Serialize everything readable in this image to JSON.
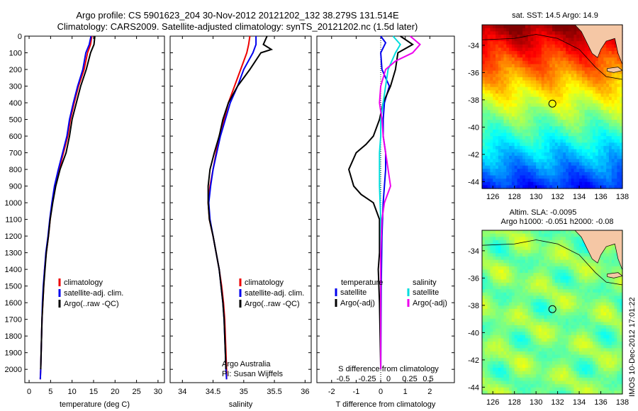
{
  "header": {
    "title_line1": "Argo profile: CS 5901623_204 30-Nov-2012 20121202_132 38.279S 131.514E",
    "title_line2": "Climatology: CARS2009. Satellite-adjusted climatology: synTS_20121202.nc (1.5d later)"
  },
  "stamp": "IMOS 10-Dec-2012 17:01:22",
  "colors": {
    "climatology": "#ee0000",
    "satellite": "#0000ee",
    "argo": "#000000",
    "satellite_salinity": "#00dddd",
    "argo_adj_salinity": "#ee00ee"
  },
  "chart_data": [
    {
      "type": "line",
      "panel": "temperature",
      "xlabel": "temperature (deg C)",
      "xlim": [
        -1,
        31.5
      ],
      "xticks": [
        0,
        5,
        10,
        15,
        20,
        25,
        30
      ],
      "ylim": [
        2080,
        0
      ],
      "yticks": [
        0,
        100,
        200,
        300,
        400,
        500,
        600,
        700,
        800,
        900,
        1000,
        1100,
        1200,
        1300,
        1400,
        1500,
        1600,
        1700,
        1800,
        1900,
        2000
      ],
      "legend": [
        "climatology",
        "satellite-adj. clim.",
        "Argo(..raw -QC)"
      ],
      "series": [
        {
          "name": "climatology",
          "color": "climatology",
          "points": [
            [
              14.6,
              0
            ],
            [
              14.3,
              50
            ],
            [
              13.6,
              100
            ],
            [
              12.8,
              200
            ],
            [
              11.5,
              300
            ],
            [
              10.5,
              400
            ],
            [
              9.6,
              500
            ],
            [
              9.0,
              600
            ],
            [
              8.0,
              700
            ],
            [
              7.0,
              800
            ],
            [
              6.0,
              900
            ],
            [
              5.4,
              1000
            ],
            [
              4.9,
              1100
            ],
            [
              4.5,
              1200
            ],
            [
              4.0,
              1300
            ],
            [
              3.6,
              1400
            ],
            [
              3.4,
              1500
            ],
            [
              3.2,
              1600
            ],
            [
              3.0,
              1700
            ],
            [
              2.9,
              1800
            ],
            [
              2.8,
              1900
            ],
            [
              2.7,
              2000
            ],
            [
              2.6,
              2060
            ]
          ]
        },
        {
          "name": "satellite-adj. clim.",
          "color": "satellite",
          "points": [
            [
              14.4,
              0
            ],
            [
              14.0,
              50
            ],
            [
              13.2,
              100
            ],
            [
              12.5,
              200
            ],
            [
              11.3,
              300
            ],
            [
              10.3,
              400
            ],
            [
              9.4,
              500
            ],
            [
              8.8,
              600
            ],
            [
              7.8,
              700
            ],
            [
              6.8,
              800
            ],
            [
              5.9,
              900
            ],
            [
              5.3,
              1000
            ],
            [
              4.8,
              1100
            ],
            [
              4.4,
              1200
            ],
            [
              3.9,
              1300
            ],
            [
              3.6,
              1400
            ],
            [
              3.3,
              1500
            ],
            [
              3.1,
              1600
            ],
            [
              3.0,
              1700
            ],
            [
              2.9,
              1800
            ],
            [
              2.8,
              1900
            ],
            [
              2.7,
              2000
            ],
            [
              2.6,
              2060
            ]
          ]
        },
        {
          "name": "Argo(..raw -QC)",
          "color": "argo",
          "points": [
            [
              15.3,
              0
            ],
            [
              15.1,
              50
            ],
            [
              14.3,
              100
            ],
            [
              13.3,
              200
            ],
            [
              12.0,
              300
            ],
            [
              11.0,
              400
            ],
            [
              10.0,
              500
            ],
            [
              9.4,
              600
            ],
            [
              8.6,
              700
            ],
            [
              7.2,
              800
            ],
            [
              6.2,
              900
            ],
            [
              5.5,
              1000
            ],
            [
              4.9,
              1100
            ],
            [
              4.5,
              1200
            ],
            [
              4.0,
              1300
            ],
            [
              3.7,
              1400
            ],
            [
              3.4,
              1500
            ],
            [
              3.2,
              1600
            ],
            [
              3.0,
              1700
            ],
            [
              2.9,
              1800
            ],
            [
              2.8,
              1900
            ],
            [
              2.7,
              2000
            ]
          ]
        }
      ]
    },
    {
      "type": "line",
      "panel": "salinity",
      "xlabel": "salinity",
      "xlim": [
        33.8,
        36.1
      ],
      "xticks": [
        34,
        34.5,
        35,
        35.5,
        36
      ],
      "ylim": [
        2080,
        0
      ],
      "legend": [
        "climatology",
        "satellite-adj. clim.",
        "Argo(..raw -QC)"
      ],
      "annotation": [
        "Argo Australia",
        "PI: Susan Wijffels"
      ],
      "series": [
        {
          "name": "climatology",
          "color": "climatology",
          "points": [
            [
              35.1,
              0
            ],
            [
              35.08,
              50
            ],
            [
              35.05,
              100
            ],
            [
              34.95,
              200
            ],
            [
              34.85,
              300
            ],
            [
              34.75,
              400
            ],
            [
              34.68,
              500
            ],
            [
              34.6,
              600
            ],
            [
              34.55,
              700
            ],
            [
              34.5,
              800
            ],
            [
              34.45,
              900
            ],
            [
              34.42,
              1000
            ],
            [
              34.44,
              1100
            ],
            [
              34.5,
              1200
            ],
            [
              34.55,
              1300
            ],
            [
              34.6,
              1400
            ],
            [
              34.64,
              1500
            ],
            [
              34.67,
              1600
            ],
            [
              34.69,
              1700
            ],
            [
              34.7,
              1800
            ],
            [
              34.71,
              1900
            ],
            [
              34.72,
              2000
            ],
            [
              34.72,
              2060
            ]
          ]
        },
        {
          "name": "satellite-adj. clim.",
          "color": "satellite",
          "points": [
            [
              35.2,
              0
            ],
            [
              35.2,
              50
            ],
            [
              35.15,
              100
            ],
            [
              35.0,
              200
            ],
            [
              34.9,
              300
            ],
            [
              34.78,
              400
            ],
            [
              34.7,
              500
            ],
            [
              34.62,
              600
            ],
            [
              34.56,
              700
            ],
            [
              34.5,
              800
            ],
            [
              34.46,
              900
            ],
            [
              34.43,
              1000
            ],
            [
              34.45,
              1100
            ],
            [
              34.5,
              1200
            ],
            [
              34.55,
              1300
            ],
            [
              34.6,
              1400
            ],
            [
              34.63,
              1500
            ],
            [
              34.66,
              1600
            ],
            [
              34.68,
              1700
            ],
            [
              34.69,
              1800
            ],
            [
              34.7,
              1900
            ],
            [
              34.71,
              2000
            ],
            [
              34.72,
              2060
            ]
          ]
        },
        {
          "name": "Argo(..raw -QC)",
          "color": "argo",
          "points": [
            [
              35.38,
              0
            ],
            [
              35.32,
              50
            ],
            [
              35.45,
              80
            ],
            [
              35.28,
              100
            ],
            [
              35.1,
              200
            ],
            [
              34.9,
              300
            ],
            [
              34.75,
              400
            ],
            [
              34.66,
              500
            ],
            [
              34.6,
              600
            ],
            [
              34.52,
              700
            ],
            [
              34.45,
              800
            ],
            [
              34.42,
              900
            ],
            [
              34.42,
              1000
            ],
            [
              34.44,
              1100
            ],
            [
              34.5,
              1200
            ],
            [
              34.55,
              1300
            ],
            [
              34.6,
              1400
            ],
            [
              34.63,
              1500
            ],
            [
              34.66,
              1600
            ],
            [
              34.68,
              1700
            ],
            [
              34.69,
              1800
            ],
            [
              34.7,
              1900
            ],
            [
              34.71,
              2000
            ]
          ]
        }
      ]
    },
    {
      "type": "line",
      "panel": "difference",
      "xlabel": "T difference from climatology",
      "xlim": [
        -2.6,
        3.0
      ],
      "xticks": [
        -2,
        -1,
        0,
        1,
        2
      ],
      "top_axis_label": "S difference from climatology",
      "top_xticks": [
        "-0.5",
        "-0.25",
        "0",
        "0.25",
        "0.5"
      ],
      "ylim": [
        2080,
        0
      ],
      "legend_temperature": [
        "temperature",
        "satellite",
        "Argo(-adj)"
      ],
      "legend_salinity": [
        "salinity",
        "satellite",
        "Argo(-adj)"
      ],
      "series": [
        {
          "name": "satellite",
          "color": "satellite",
          "points": [
            [
              0,
              0
            ],
            [
              0.2,
              40
            ],
            [
              0.0,
              100
            ],
            [
              0.05,
              200
            ],
            [
              0.35,
              300
            ],
            [
              0.15,
              400
            ],
            [
              0.1,
              500
            ],
            [
              0.1,
              600
            ],
            [
              0.2,
              700
            ],
            [
              0.2,
              800
            ],
            [
              0.15,
              900
            ],
            [
              0.1,
              1000
            ],
            [
              0.05,
              1200
            ],
            [
              0.02,
              1500
            ],
            [
              0.0,
              2000
            ]
          ]
        },
        {
          "name": "Argo(-adj)",
          "color": "argo",
          "points": [
            [
              0.8,
              0
            ],
            [
              1.3,
              50
            ],
            [
              0.7,
              100
            ],
            [
              0.6,
              200
            ],
            [
              0.4,
              300
            ],
            [
              0.1,
              400
            ],
            [
              -0.05,
              500
            ],
            [
              -0.3,
              600
            ],
            [
              -0.6,
              650
            ],
            [
              -1.0,
              700
            ],
            [
              -1.3,
              800
            ],
            [
              -1.1,
              900
            ],
            [
              -0.8,
              950
            ],
            [
              -0.3,
              1000
            ],
            [
              -0.05,
              1100
            ],
            [
              -0.05,
              1300
            ],
            [
              -0.1,
              1400
            ],
            [
              -0.05,
              1600
            ],
            [
              0,
              2000
            ]
          ]
        },
        {
          "name": "satellite",
          "color": "satellite_salinity",
          "points": [
            [
              0.5,
              0
            ],
            [
              0.8,
              50
            ],
            [
              0.6,
              100
            ],
            [
              0.3,
              200
            ],
            [
              0.2,
              300
            ],
            [
              0.1,
              400
            ],
            [
              0.0,
              500
            ],
            [
              0.0,
              600
            ],
            [
              -0.05,
              700
            ],
            [
              -0.05,
              900
            ],
            [
              0.0,
              1100
            ],
            [
              0.0,
              2000
            ]
          ]
        },
        {
          "name": "Argo(-adj)",
          "color": "argo_adj_salinity",
          "points": [
            [
              1.2,
              0
            ],
            [
              1.6,
              50
            ],
            [
              1.3,
              100
            ],
            [
              0.6,
              150
            ],
            [
              0.2,
              200
            ],
            [
              0.0,
              300
            ],
            [
              -0.05,
              400
            ],
            [
              0.05,
              500
            ],
            [
              0.1,
              600
            ],
            [
              0.2,
              700
            ],
            [
              0.3,
              800
            ],
            [
              0.4,
              900
            ],
            [
              0.15,
              1000
            ],
            [
              0.05,
              1100
            ],
            [
              0.0,
              1300
            ],
            [
              0.0,
              2000
            ]
          ]
        }
      ]
    },
    {
      "type": "heatmap",
      "panel": "sst_map",
      "title": "sat. SST: 14.5 Argo: 14.9",
      "xlim": [
        125,
        138
      ],
      "ylim": [
        -44.5,
        -32.5
      ],
      "xticks": [
        126,
        128,
        130,
        132,
        134,
        136,
        138
      ],
      "yticks": [
        -34,
        -36,
        -38,
        -40,
        -42,
        -44
      ],
      "argo_position": [
        131.514,
        -38.279
      ]
    },
    {
      "type": "heatmap",
      "panel": "sla_map",
      "title_line1": "Altim. SLA: -0.0095",
      "title_line2": "Argo h1000: -0.051 h2000: -0.08",
      "xlim": [
        125,
        138
      ],
      "ylim": [
        -44.5,
        -32.5
      ],
      "xticks": [
        126,
        128,
        130,
        132,
        134,
        136,
        138
      ],
      "yticks": [
        -34,
        -36,
        -38,
        -40,
        -42,
        -44
      ],
      "argo_position": [
        131.514,
        -38.279
      ]
    }
  ]
}
